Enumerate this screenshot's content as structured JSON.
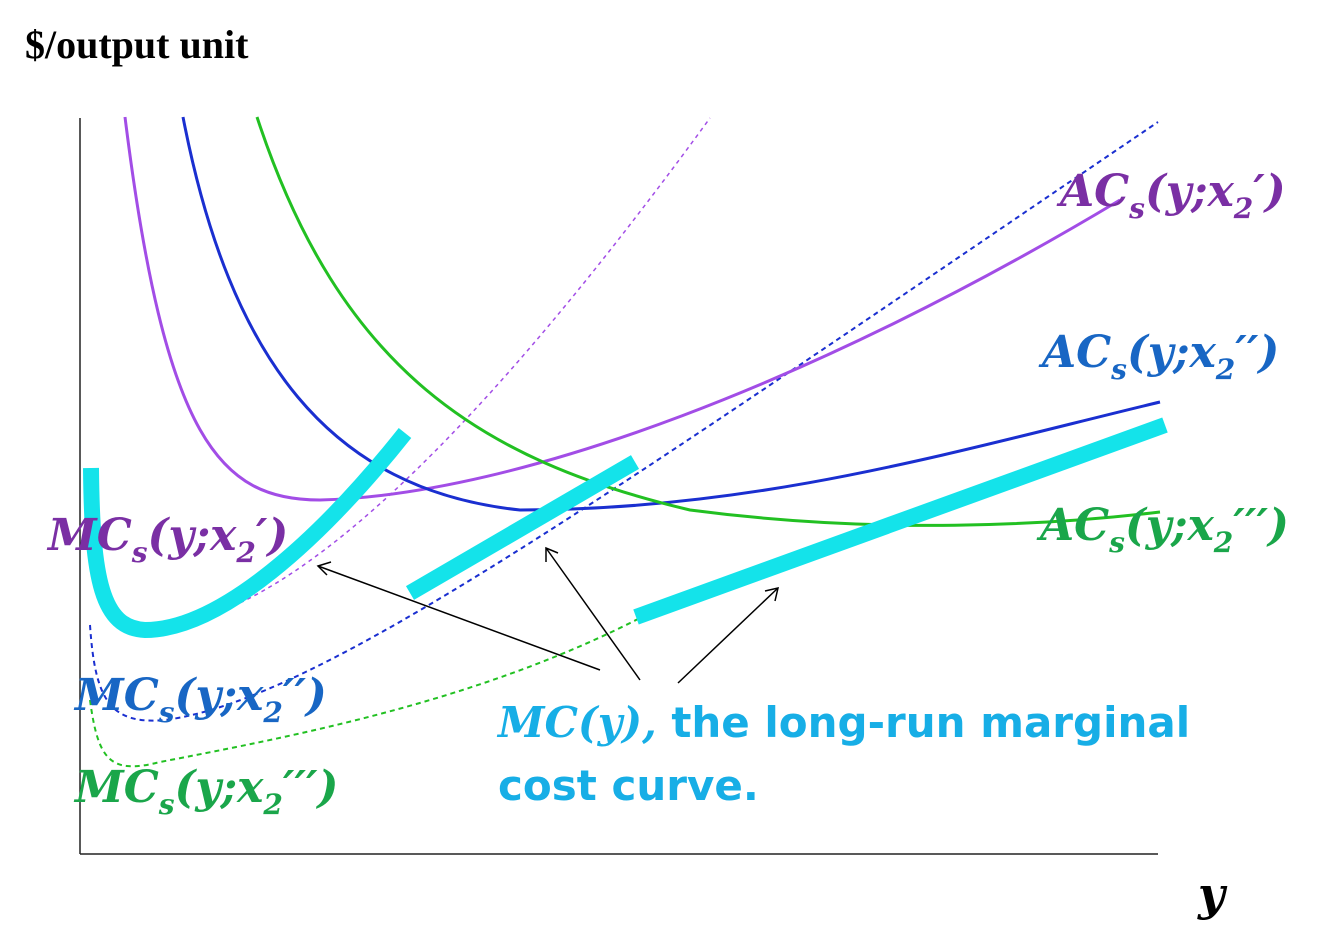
{
  "axes": {
    "y_label": "$/output unit",
    "x_label": "y"
  },
  "labels": {
    "ac1": {
      "main": "AC",
      "sub": "s",
      "pre": "(y;x",
      "sub2": "2",
      "post": "′)"
    },
    "ac2": {
      "main": "AC",
      "sub": "s",
      "pre": "(y;x",
      "sub2": "2",
      "post": "′′)"
    },
    "ac3": {
      "main": "AC",
      "sub": "s",
      "pre": "(y;x",
      "sub2": "2",
      "post": "′′′)"
    },
    "mc1": {
      "main": "MC",
      "sub": "s",
      "pre": "(y;x",
      "sub2": "2",
      "post": "′)"
    },
    "mc2": {
      "main": "MC",
      "sub": "s",
      "pre": "(y;x",
      "sub2": "2",
      "post": "′′)"
    },
    "mc3": {
      "main": "MC",
      "sub": "s",
      "pre": "(y;x",
      "sub2": "2",
      "post": "′′′)"
    }
  },
  "annotation": {
    "line1_italic": "MC(y),",
    "line1_rest": " the long-run marginal",
    "line2": "cost curve."
  },
  "colors": {
    "purple": "#a24de6",
    "purple_label": "#7a2fa4",
    "blue": "#1a2fd0",
    "blue_label": "#1866c4",
    "green": "#22c022",
    "green_label": "#1aa64a",
    "cyan": "#14e3ea",
    "cyan_text": "#17aee6",
    "axis": "#000000"
  }
}
